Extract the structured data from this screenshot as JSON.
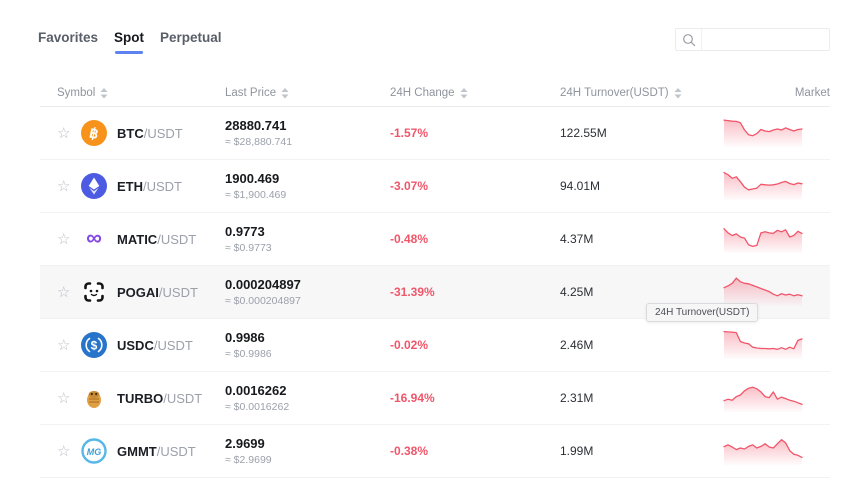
{
  "tabs": [
    {
      "label": "Favorites",
      "active": false
    },
    {
      "label": "Spot",
      "active": true
    },
    {
      "label": "Perpetual",
      "active": false
    }
  ],
  "search": {
    "placeholder": "",
    "value": "",
    "icon": "search-icon"
  },
  "table": {
    "headers": [
      {
        "key": "symbol",
        "label": "Symbol",
        "sortable": true
      },
      {
        "key": "price",
        "label": "Last Price",
        "sortable": true
      },
      {
        "key": "change",
        "label": "24H Change",
        "sortable": true
      },
      {
        "key": "turnover",
        "label": "24H Turnover(USDT)",
        "sortable": true
      },
      {
        "key": "market",
        "label": "Market",
        "sortable": false
      }
    ],
    "rows": [
      {
        "star_icon": "star-outline-icon",
        "coin_icon": "btc-coin-icon",
        "base": "BTC",
        "quote": "/USDT",
        "price": "28880.741",
        "approx": "≈ $28,880.741",
        "change": "-1.57%",
        "turnover": "122.55M",
        "highlighted": false
      },
      {
        "star_icon": "star-outline-icon",
        "coin_icon": "eth-coin-icon",
        "base": "ETH",
        "quote": "/USDT",
        "price": "1900.469",
        "approx": "≈ $1,900.469",
        "change": "-3.07%",
        "turnover": "94.01M",
        "highlighted": false
      },
      {
        "star_icon": "star-outline-icon",
        "coin_icon": "matic-coin-icon",
        "base": "MATIC",
        "quote": "/USDT",
        "price": "0.9773",
        "approx": "≈ $0.9773",
        "change": "-0.48%",
        "turnover": "4.37M",
        "highlighted": false
      },
      {
        "star_icon": "star-outline-icon",
        "coin_icon": "pogai-coin-icon",
        "base": "POGAI",
        "quote": "/USDT",
        "price": "0.000204897",
        "approx": "≈ $0.000204897",
        "change": "-31.39%",
        "turnover": "4.25M",
        "highlighted": true
      },
      {
        "star_icon": "star-outline-icon",
        "coin_icon": "usdc-coin-icon",
        "base": "USDC",
        "quote": "/USDT",
        "price": "0.9986",
        "approx": "≈ $0.9986",
        "change": "-0.02%",
        "turnover": "2.46M",
        "highlighted": false
      },
      {
        "star_icon": "star-outline-icon",
        "coin_icon": "turbo-coin-icon",
        "base": "TURBO",
        "quote": "/USDT",
        "price": "0.0016262",
        "approx": "≈ $0.0016262",
        "change": "-16.94%",
        "turnover": "2.31M",
        "highlighted": false
      },
      {
        "star_icon": "star-outline-icon",
        "coin_icon": "gmmt-coin-icon",
        "base": "GMMT",
        "quote": "/USDT",
        "price": "2.9699",
        "approx": "≈ $2.9699",
        "change": "-0.38%",
        "turnover": "1.99M",
        "highlighted": false
      }
    ]
  },
  "tooltip": {
    "text": "24H Turnover(USDT)"
  },
  "colors": {
    "accent_tab": "#5e82f0",
    "change_down": "#f0566a",
    "spark_line": "#f0566a",
    "btc": "#F7931A",
    "eth": "#4d5be2",
    "matic": "#8247E5",
    "usdc": "#2775CA",
    "turbo": "#dfa045",
    "gmmt": "#57b7e8"
  },
  "chart_data": {
    "type": "line",
    "title": "24H mini price sparklines per trading pair",
    "legend_position": "none",
    "grid": false,
    "series": [
      {
        "name": "BTC/USDT",
        "values": [
          0.88,
          0.86,
          0.84,
          0.83,
          0.78,
          0.5,
          0.32,
          0.28,
          0.36,
          0.52,
          0.46,
          0.44,
          0.5,
          0.54,
          0.5,
          0.58,
          0.52,
          0.46,
          0.52,
          0.54
        ]
      },
      {
        "name": "ETH/USDT",
        "values": [
          0.9,
          0.82,
          0.68,
          0.74,
          0.55,
          0.34,
          0.24,
          0.27,
          0.3,
          0.45,
          0.43,
          0.42,
          0.43,
          0.46,
          0.52,
          0.56,
          0.48,
          0.44,
          0.5,
          0.47
        ]
      },
      {
        "name": "MATIC/USDT",
        "values": [
          0.78,
          0.62,
          0.52,
          0.58,
          0.46,
          0.42,
          0.16,
          0.1,
          0.14,
          0.62,
          0.66,
          0.62,
          0.6,
          0.72,
          0.66,
          0.74,
          0.46,
          0.52,
          0.68,
          0.6
        ]
      },
      {
        "name": "POGAI/USDT",
        "values": [
          0.55,
          0.62,
          0.72,
          0.92,
          0.78,
          0.72,
          0.7,
          0.64,
          0.58,
          0.52,
          0.46,
          0.4,
          0.3,
          0.24,
          0.32,
          0.27,
          0.3,
          0.24,
          0.28,
          0.24
        ]
      },
      {
        "name": "USDC/USDT",
        "values": [
          0.9,
          0.89,
          0.88,
          0.86,
          0.52,
          0.46,
          0.43,
          0.3,
          0.27,
          0.25,
          0.25,
          0.24,
          0.25,
          0.22,
          0.28,
          0.22,
          0.3,
          0.24,
          0.56,
          0.62
        ]
      },
      {
        "name": "TURBO/USDT",
        "values": [
          0.28,
          0.34,
          0.3,
          0.44,
          0.5,
          0.66,
          0.76,
          0.8,
          0.74,
          0.62,
          0.44,
          0.4,
          0.62,
          0.34,
          0.42,
          0.36,
          0.3,
          0.26,
          0.2,
          0.14
        ]
      },
      {
        "name": "GMMT/USDT",
        "values": [
          0.55,
          0.62,
          0.54,
          0.44,
          0.5,
          0.46,
          0.56,
          0.62,
          0.5,
          0.56,
          0.66,
          0.54,
          0.5,
          0.66,
          0.82,
          0.7,
          0.4,
          0.26,
          0.22,
          0.14
        ]
      }
    ]
  }
}
